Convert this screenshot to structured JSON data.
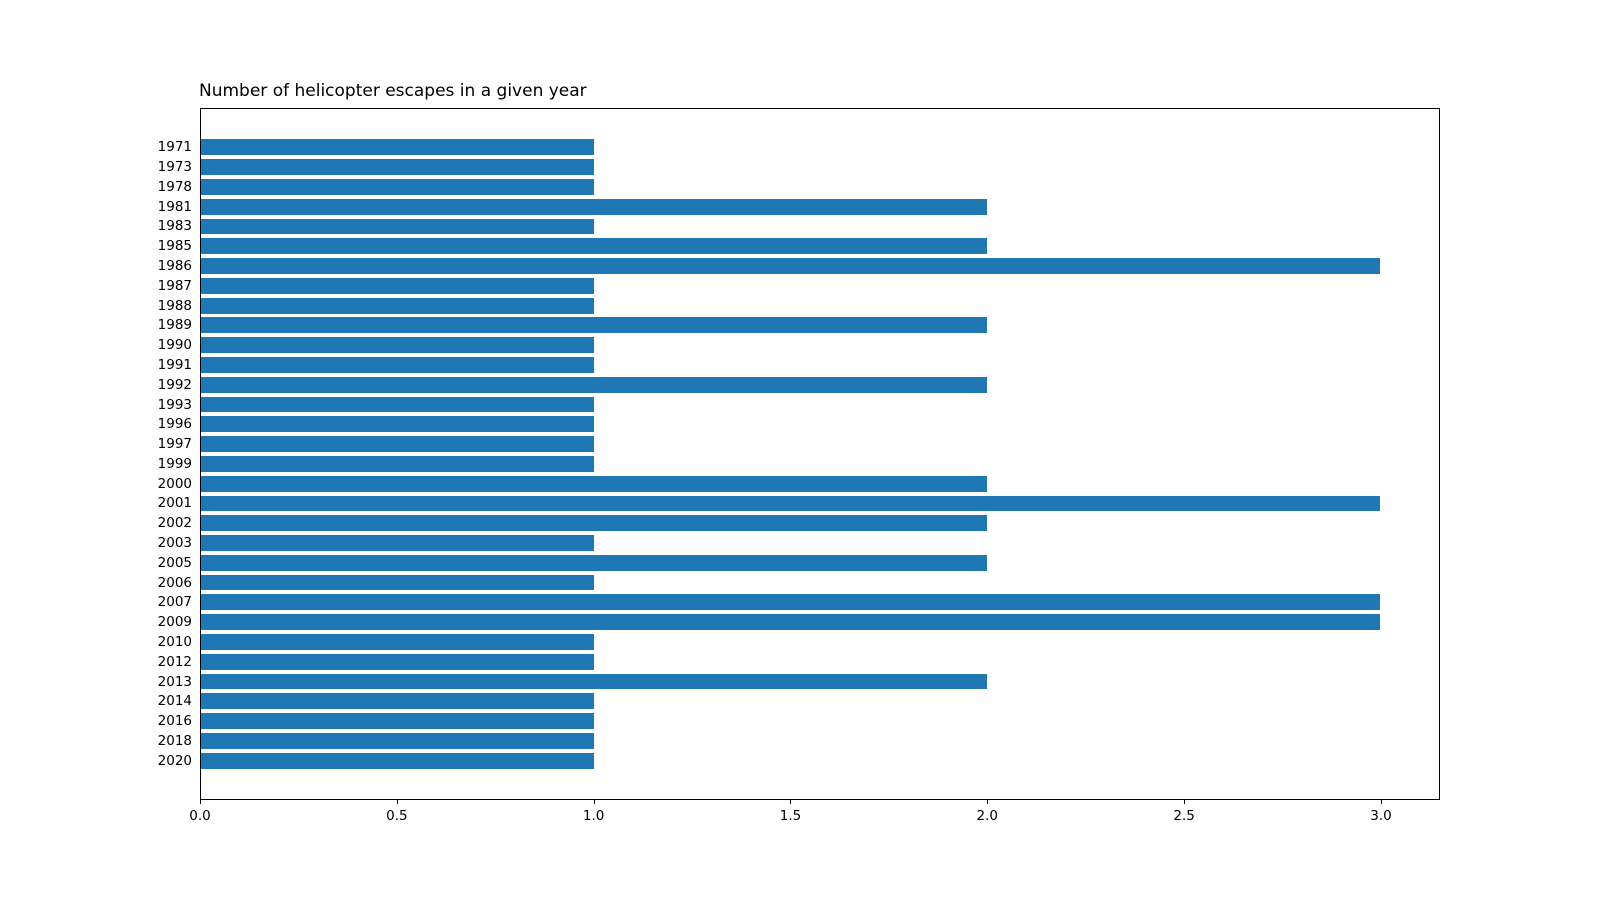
{
  "page": {
    "background_color": "#ffffff",
    "text_color": "#000000"
  },
  "chart_data": {
    "type": "bar",
    "orientation": "horizontal",
    "title": "Number of helicopter escapes in a given year",
    "title_align": "left",
    "categories": [
      "1971",
      "1973",
      "1978",
      "1981",
      "1983",
      "1985",
      "1986",
      "1987",
      "1988",
      "1989",
      "1990",
      "1991",
      "1992",
      "1993",
      "1996",
      "1997",
      "1999",
      "2000",
      "2001",
      "2002",
      "2003",
      "2005",
      "2006",
      "2007",
      "2009",
      "2010",
      "2012",
      "2013",
      "2014",
      "2016",
      "2018",
      "2020"
    ],
    "values": [
      1,
      1,
      1,
      2,
      1,
      2,
      3,
      1,
      1,
      2,
      1,
      1,
      2,
      1,
      1,
      1,
      1,
      2,
      3,
      2,
      1,
      2,
      1,
      3,
      3,
      1,
      1,
      2,
      1,
      1,
      1,
      1
    ],
    "xlabel": "",
    "ylabel": "",
    "x_ticks": [
      {
        "value": 0,
        "label": "0.0"
      },
      {
        "value": 0.5,
        "label": "0.5"
      },
      {
        "value": 1,
        "label": "1.0"
      },
      {
        "value": 1.5,
        "label": "1.5"
      },
      {
        "value": 2,
        "label": "2.0"
      },
      {
        "value": 2.5,
        "label": "2.5"
      },
      {
        "value": 3,
        "label": "3.0"
      }
    ],
    "xlim": [
      0,
      3.15
    ],
    "bar_color": "#1f77b4",
    "grid": false,
    "legend": null
  }
}
